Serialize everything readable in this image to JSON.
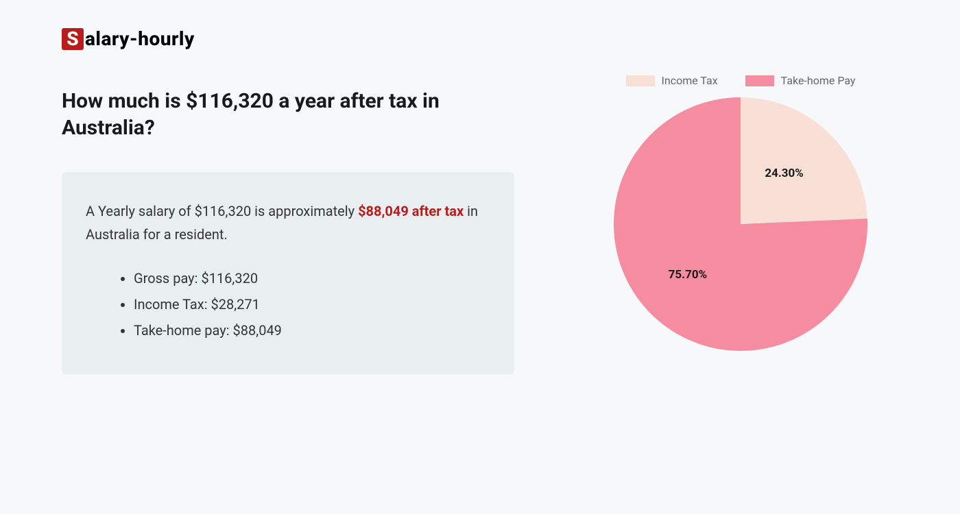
{
  "logo": {
    "s_char": "S",
    "rest": "alary-hourly",
    "s_bg": "#b91c1c",
    "s_fg": "#ffffff"
  },
  "heading": "How much is $116,320 a year after tax in Australia?",
  "summary": {
    "text_before": "A Yearly salary of $116,320 is approximately ",
    "highlight": "$88,049 after tax",
    "text_after": " in Australia for a resident.",
    "highlight_color": "#b91c1c",
    "box_bg": "#e9eff0",
    "bullets": [
      "Gross pay: $116,320",
      "Income Tax: $28,271",
      "Take-home pay: $88,049"
    ]
  },
  "chart": {
    "type": "pie",
    "legend": [
      {
        "label": "Income Tax",
        "color": "#f9e0d6"
      },
      {
        "label": "Take-home Pay",
        "color": "#f58c9f"
      }
    ],
    "slices": [
      {
        "name": "Income Tax",
        "value": 24.3,
        "label": "24.30%",
        "color": "#f9e0d6"
      },
      {
        "name": "Take-home Pay",
        "value": 75.7,
        "label": "75.70%",
        "color": "#f58c9f"
      }
    ],
    "label_fontsize": 17,
    "label_fontweight": 700,
    "label_color": "#1a1a1a",
    "background_color": "#f6f8f9",
    "diameter": 370,
    "start_angle_deg": 0
  }
}
